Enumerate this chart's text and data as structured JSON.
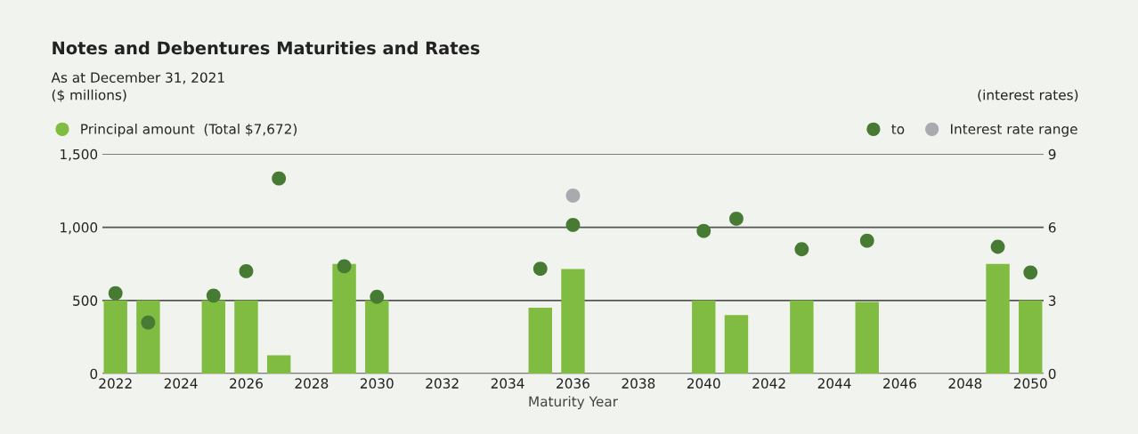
{
  "chart_data": {
    "type": "bar",
    "title": "Notes and Debentures Maturities and Rates",
    "subtitle": "As at December 31, 2021",
    "ylabel": "($ millions)",
    "y2label": "(interest rates)",
    "xlabel": "Maturity Year",
    "series": [
      {
        "name": "Principal amount  (Total $7,672)",
        "color": "#80bc41",
        "x": [
          2022,
          2023,
          2025,
          2026,
          2027,
          2029,
          2030,
          2035,
          2036,
          2040,
          2041,
          2043,
          2045,
          2049,
          2050
        ],
        "values": [
          500,
          500,
          500,
          500,
          125,
          750,
          500,
          450,
          715,
          500,
          400,
          500,
          490,
          750,
          500
        ]
      },
      {
        "name": "to",
        "type": "scatter",
        "axis": "y2",
        "color": "#477a32",
        "x": [
          2022,
          2023,
          2025,
          2026,
          2027,
          2029,
          2030,
          2035,
          2036,
          2040,
          2041,
          2043,
          2045,
          2049,
          2050
        ],
        "values": [
          3.3,
          2.1,
          3.2,
          4.2,
          8.0,
          4.4,
          3.15,
          4.3,
          6.1,
          5.85,
          6.35,
          5.1,
          5.45,
          5.2,
          4.15
        ]
      },
      {
        "name": "Interest rate range",
        "type": "scatter",
        "axis": "y2",
        "color": "#a9aaaf",
        "x": [
          2036
        ],
        "values": [
          7.3
        ]
      }
    ],
    "xlim": [
      2021.6,
      2050.4
    ],
    "xticks": [
      2022,
      2024,
      2026,
      2028,
      2030,
      2032,
      2034,
      2036,
      2038,
      2040,
      2042,
      2044,
      2046,
      2048,
      2050
    ],
    "ylim": [
      0,
      1500
    ],
    "yticks": [
      0,
      {
        "value": 500,
        "label": "500"
      },
      {
        "value": 1000,
        "label": "1,000"
      },
      {
        "value": 1500,
        "label": "1,500"
      }
    ],
    "y2lim": [
      0,
      9
    ],
    "y2ticks": [
      0,
      3,
      6,
      9
    ],
    "grid": "y",
    "legend": "top",
    "marker": "circle"
  }
}
